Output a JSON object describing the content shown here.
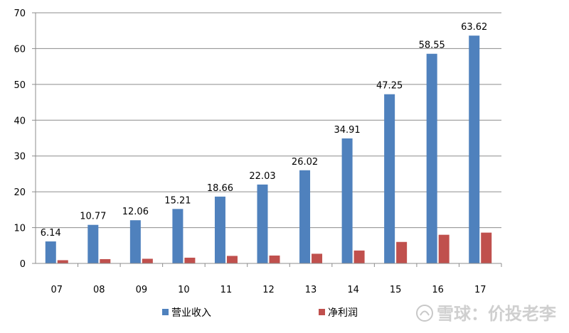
{
  "chart_data": {
    "type": "bar",
    "categories": [
      "07",
      "08",
      "09",
      "10",
      "11",
      "12",
      "13",
      "14",
      "15",
      "16",
      "17"
    ],
    "series": [
      {
        "name": "营业收入",
        "color": "#4F81BD",
        "values": [
          6.14,
          10.77,
          12.06,
          15.21,
          18.66,
          22.03,
          26.02,
          34.91,
          47.25,
          58.55,
          63.62
        ],
        "data_labels": [
          "6.14",
          "10.77",
          "12.06",
          "15.21",
          "18.66",
          "22.03",
          "26.02",
          "34.91",
          "47.25",
          "58.55",
          "63.62"
        ]
      },
      {
        "name": "净利润",
        "color": "#C0504D",
        "values": [
          0.9,
          1.2,
          1.3,
          1.6,
          2.1,
          2.2,
          2.7,
          3.6,
          6.0,
          8.0,
          8.6
        ]
      }
    ],
    "ylim": [
      0,
      70
    ],
    "yticks": [
      "0",
      "10",
      "20",
      "30",
      "40",
      "50",
      "60",
      "70"
    ],
    "grid": true,
    "legend_position": "bottom",
    "title": "",
    "xlabel": "",
    "ylabel": ""
  },
  "watermark": "雪球：价投老李"
}
